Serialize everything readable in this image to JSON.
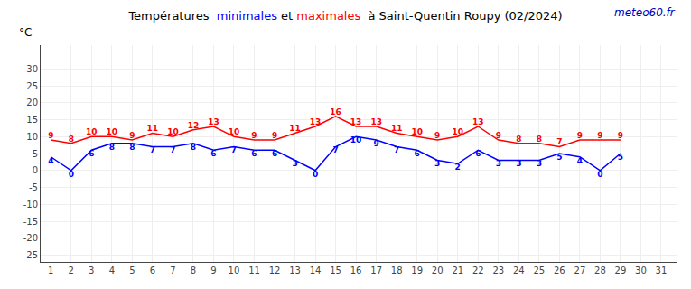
{
  "chart_data": {
    "type": "line",
    "title": "Températures  minimales et maximales  à Saint-Quentin Roupy (02/2024)",
    "ylabel": "°C",
    "annotations": [
      {
        "text": "meteo60.fr",
        "color": "#0000bb"
      }
    ],
    "x": [
      1,
      2,
      3,
      4,
      5,
      6,
      7,
      8,
      9,
      10,
      11,
      12,
      13,
      14,
      15,
      16,
      17,
      18,
      19,
      20,
      21,
      22,
      23,
      24,
      25,
      26,
      27,
      28,
      29,
      30,
      31
    ],
    "series": [
      {
        "name": "minimales",
        "color": "#0000ff",
        "values": [
          4,
          0,
          6,
          8,
          8,
          7,
          7,
          8,
          6,
          7,
          6,
          6,
          3,
          0,
          7,
          10,
          9,
          7,
          6,
          3,
          2,
          6,
          3,
          3,
          3,
          5,
          4,
          0,
          5,
          null,
          null
        ]
      },
      {
        "name": "maximales",
        "color": "#ff0000",
        "values": [
          9,
          8,
          10,
          10,
          9,
          11,
          10,
          12,
          13,
          10,
          9,
          9,
          11,
          13,
          16,
          13,
          13,
          11,
          10,
          9,
          10,
          13,
          9,
          8,
          8,
          7,
          9,
          9,
          9,
          null,
          null
        ]
      }
    ],
    "xlim": [
      0.5,
      31.8
    ],
    "xticks": [
      1,
      2,
      3,
      4,
      5,
      6,
      7,
      8,
      9,
      10,
      11,
      12,
      13,
      14,
      15,
      16,
      17,
      18,
      19,
      20,
      21,
      22,
      23,
      24,
      25,
      26,
      27,
      28,
      29,
      30,
      31
    ],
    "ylim": [
      -27,
      37
    ],
    "yticks": [
      -25,
      -20,
      -15,
      -10,
      -5,
      0,
      5,
      10,
      15,
      20,
      25,
      30
    ],
    "grid": true,
    "data_labels": true
  }
}
